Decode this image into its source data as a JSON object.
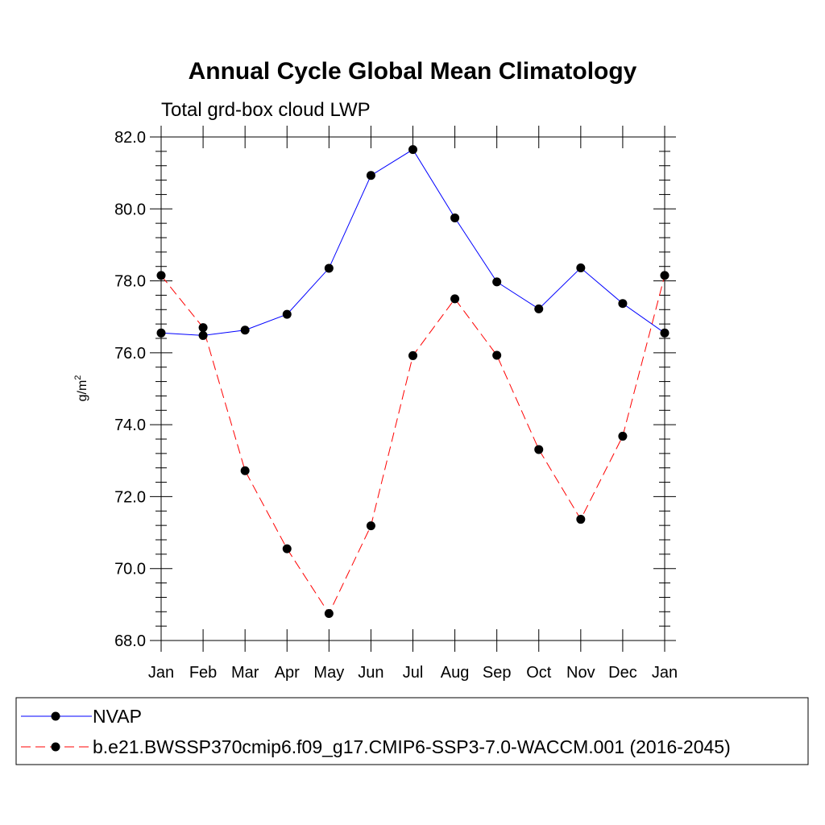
{
  "chart_data": {
    "type": "line",
    "title": "Annual Cycle Global Mean Climatology",
    "subtitle": "Total grd-box cloud LWP",
    "ylabel": "g/m",
    "ylabel_sup": "2",
    "ylim": [
      68.0,
      82.0
    ],
    "yticks": [
      "68.0",
      "70.0",
      "72.0",
      "74.0",
      "76.0",
      "78.0",
      "80.0",
      "82.0"
    ],
    "categories": [
      "Jan",
      "Feb",
      "Mar",
      "Apr",
      "May",
      "Jun",
      "Jul",
      "Aug",
      "Sep",
      "Oct",
      "Nov",
      "Dec",
      "Jan"
    ],
    "series": [
      {
        "name": "NVAP",
        "color": "#0000ff",
        "dash": "solid",
        "values": [
          76.55,
          76.48,
          76.63,
          77.07,
          78.35,
          80.93,
          81.65,
          79.75,
          77.97,
          77.22,
          78.36,
          77.37,
          76.55
        ]
      },
      {
        "name": "b.e21.BWSSP370cmip6.f09_g17.CMIP6-SSP3-7.0-WACCM.001 (2016-2045)",
        "color": "#ff0000",
        "dash": "dashed",
        "values": [
          78.15,
          76.7,
          72.72,
          70.55,
          68.75,
          71.19,
          75.92,
          77.5,
          75.93,
          73.31,
          71.37,
          73.68,
          78.15
        ]
      }
    ],
    "grid": false,
    "legend_position": "bottom"
  }
}
